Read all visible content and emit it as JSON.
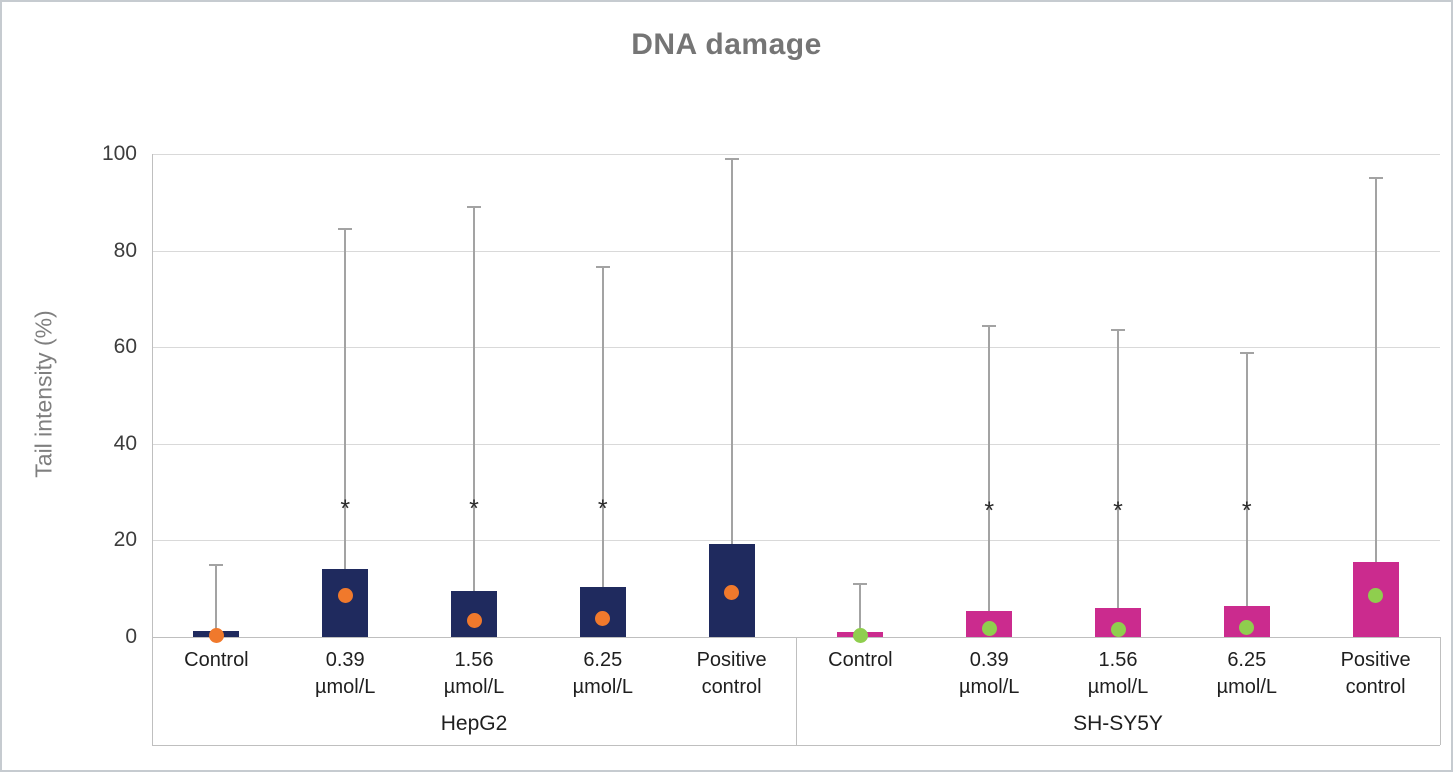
{
  "chart_data": {
    "type": "bar",
    "title": "DNA damage",
    "ylabel": "Tail intensity (%)",
    "ylim": [
      0,
      100
    ],
    "yticks": [
      0,
      20,
      40,
      60,
      80,
      100
    ],
    "grid": true,
    "legend": "none",
    "sig_marker": "*",
    "groups": [
      {
        "name": "HepG2",
        "bar_color": "#1f2a5e",
        "marker_color": "#f0792c",
        "sig_y": 26.5,
        "bars": [
          {
            "label": [
              "Control"
            ],
            "bar": 1.2,
            "dot": 0.4,
            "whisker_low": 0.2,
            "whisker_high": 15.1,
            "sig": false
          },
          {
            "label": [
              "0.39",
              "µmol/L"
            ],
            "bar": 14.0,
            "dot": 8.6,
            "whisker_low": 1.3,
            "whisker_high": 84.6,
            "sig": true
          },
          {
            "label": [
              "1.56",
              "µmol/L"
            ],
            "bar": 9.6,
            "dot": 3.4,
            "whisker_low": 0.8,
            "whisker_high": 89.3,
            "sig": true
          },
          {
            "label": [
              "6.25",
              "µmol/L"
            ],
            "bar": 10.4,
            "dot": 3.9,
            "whisker_low": 0.8,
            "whisker_high": 76.8,
            "sig": true
          },
          {
            "label": [
              "Positive",
              "control"
            ],
            "bar": 19.2,
            "dot": 9.2,
            "whisker_low": 1.3,
            "whisker_high": 99.1,
            "sig": false
          }
        ]
      },
      {
        "name": "SH-SY5Y",
        "bar_color": "#cb2b8e",
        "marker_color": "#8fce4e",
        "sig_y": 26.0,
        "bars": [
          {
            "label": [
              "Control"
            ],
            "bar": 1.0,
            "dot": 0.4,
            "whisker_low": 0.2,
            "whisker_high": 11.2,
            "sig": false
          },
          {
            "label": [
              "0.39",
              "µmol/L"
            ],
            "bar": 5.4,
            "dot": 1.8,
            "whisker_low": 0.5,
            "whisker_high": 64.6,
            "sig": true
          },
          {
            "label": [
              "1.56",
              "µmol/L"
            ],
            "bar": 6.0,
            "dot": 1.6,
            "whisker_low": 0.5,
            "whisker_high": 63.7,
            "sig": true
          },
          {
            "label": [
              "6.25",
              "µmol/L"
            ],
            "bar": 6.4,
            "dot": 2.0,
            "whisker_low": 0.5,
            "whisker_high": 59.0,
            "sig": true
          },
          {
            "label": [
              "Positive",
              "control"
            ],
            "bar": 15.5,
            "dot": 8.6,
            "whisker_low": 1.0,
            "whisker_high": 95.2,
            "sig": false
          }
        ]
      }
    ]
  }
}
